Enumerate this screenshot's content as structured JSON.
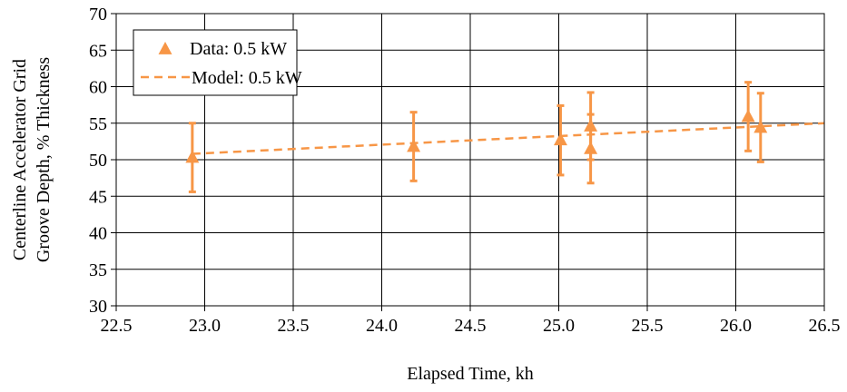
{
  "chart_data": {
    "type": "scatter",
    "xlabel": "Elapsed Time, kh",
    "ylabel_lines": [
      "Centerline Accelerator Grid",
      "Groove Depth, % Thickness"
    ],
    "xlim": [
      22.5,
      26.5
    ],
    "ylim": [
      30,
      70
    ],
    "x_ticks": [
      22.5,
      23.0,
      23.5,
      24.0,
      24.5,
      25.0,
      25.5,
      26.0,
      26.5
    ],
    "x_tick_labels": [
      "22.5",
      "23.0",
      "23.5",
      "24.0",
      "24.5",
      "25.0",
      "25.5",
      "26.0",
      "26.5"
    ],
    "y_ticks": [
      30,
      35,
      40,
      45,
      50,
      55,
      60,
      65,
      70
    ],
    "y_tick_labels": [
      "30",
      "35",
      "40",
      "45",
      "50",
      "55",
      "60",
      "65",
      "70"
    ],
    "grid": true,
    "legend_position": "top-left",
    "series": [
      {
        "name": "Data: 0.5 kW",
        "kind": "scatter-errorbar",
        "marker": "triangle",
        "color": "#F79646",
        "points": [
          {
            "x": 22.93,
            "y": 50.3,
            "ylow": 45.6,
            "yhigh": 55.0
          },
          {
            "x": 24.18,
            "y": 51.8,
            "ylow": 47.1,
            "yhigh": 56.5
          },
          {
            "x": 25.01,
            "y": 52.7,
            "ylow": 47.9,
            "yhigh": 57.4
          },
          {
            "x": 25.18,
            "y": 54.6,
            "ylow": 50.0,
            "yhigh": 59.2
          },
          {
            "x": 25.18,
            "y": 51.5,
            "ylow": 46.8,
            "yhigh": 56.2
          },
          {
            "x": 26.07,
            "y": 55.9,
            "ylow": 51.2,
            "yhigh": 60.6
          },
          {
            "x": 26.14,
            "y": 54.4,
            "ylow": 49.7,
            "yhigh": 59.1
          }
        ]
      },
      {
        "name": "Model: 0.5 kW",
        "kind": "line",
        "dashed": true,
        "color": "#F79646",
        "x": [
          22.93,
          26.5
        ],
        "y": [
          50.8,
          55.0
        ]
      }
    ]
  }
}
